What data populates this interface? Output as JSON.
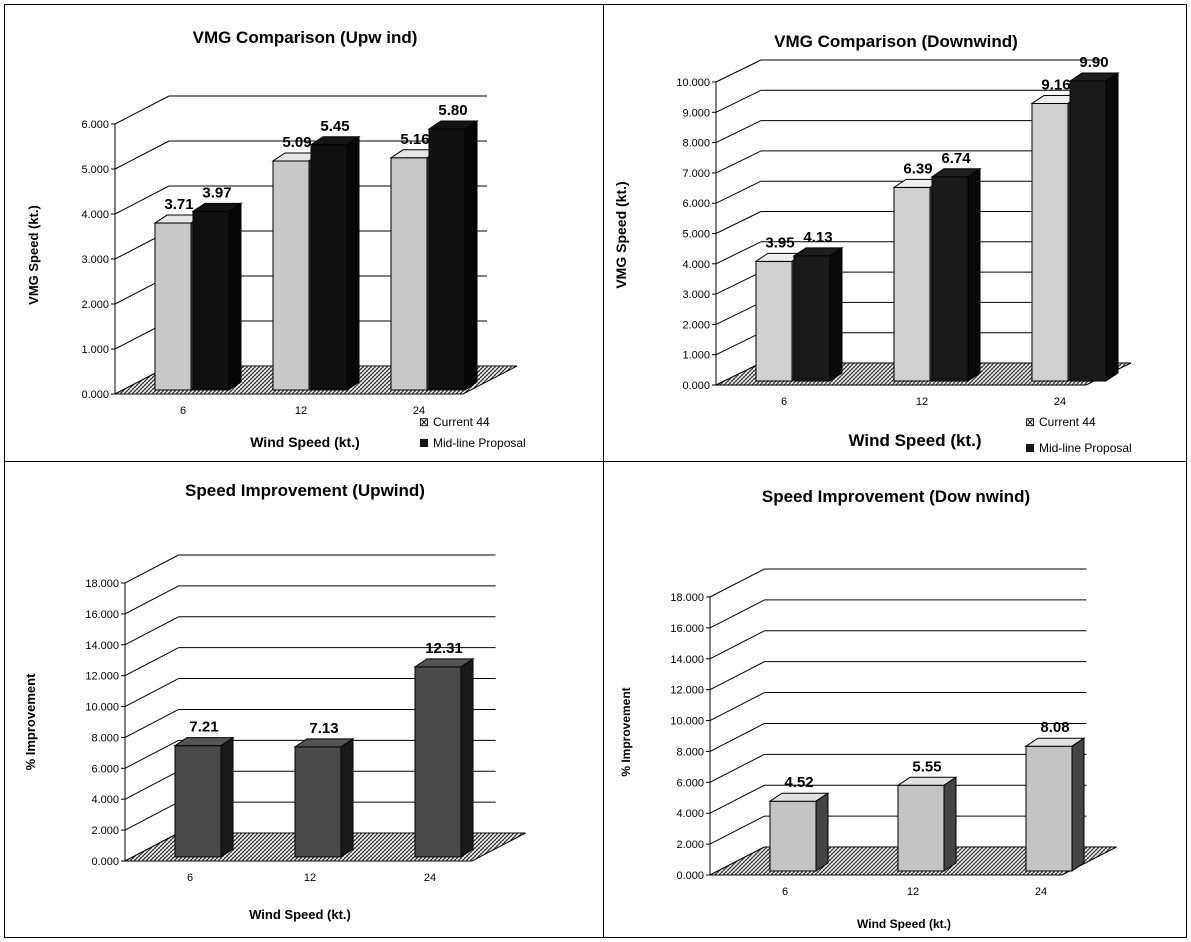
{
  "chart_data": [
    {
      "type": "bar",
      "title": "VMG Comparison (Upw ind)",
      "xlabel": "Wind Speed (kt.)",
      "ylabel": "VMG Speed (kt.)",
      "categories": [
        "6",
        "12",
        "24"
      ],
      "ylim": [
        0,
        6
      ],
      "yticks": [
        "0.000",
        "1.000",
        "2.000",
        "3.000",
        "4.000",
        "5.000",
        "6.000"
      ],
      "series": [
        {
          "name": "Current 44",
          "values": [
            3.71,
            5.09,
            5.16
          ],
          "labels": [
            "3.71",
            "5.09",
            "5.16"
          ],
          "color": "#c8c8c8"
        },
        {
          "name": "Mid-line Proposal",
          "values": [
            3.97,
            5.45,
            5.8
          ],
          "labels": [
            "3.97",
            "5.45",
            "5.80"
          ],
          "color": "#111111"
        }
      ],
      "legend": "bottom-right"
    },
    {
      "type": "bar",
      "title": "VMG Comparison (Downwind)",
      "xlabel": "Wind Speed (kt.)",
      "ylabel": "VMG Speed (kt.)",
      "categories": [
        "6",
        "12",
        "24"
      ],
      "ylim": [
        0,
        10
      ],
      "yticks": [
        "0.000",
        "1.000",
        "2.000",
        "3.000",
        "4.000",
        "5.000",
        "6.000",
        "7.000",
        "8.000",
        "9.000",
        "10.000"
      ],
      "series": [
        {
          "name": "Current 44",
          "values": [
            3.95,
            6.39,
            9.16
          ],
          "labels": [
            "3.95",
            "6.39",
            "9.16"
          ],
          "color": "#cfcfcf"
        },
        {
          "name": "Mid-line Proposal",
          "values": [
            4.13,
            6.74,
            9.9
          ],
          "labels": [
            "4.13",
            "6.74",
            "9.90"
          ],
          "color": "#1a1a1a"
        }
      ],
      "legend": "bottom-right"
    },
    {
      "type": "bar",
      "title": "Speed Improvement (Upwind)",
      "xlabel": "Wind Speed (kt.)",
      "ylabel": "% Improvement",
      "categories": [
        "6",
        "12",
        "24"
      ],
      "ylim": [
        0,
        18
      ],
      "yticks": [
        "0.000",
        "2.000",
        "4.000",
        "6.000",
        "8.000",
        "10.000",
        "12.000",
        "14.000",
        "16.000",
        "18.000"
      ],
      "series": [
        {
          "values": [
            7.21,
            7.13,
            12.31
          ],
          "labels": [
            "7.21",
            "7.13",
            "12.31"
          ],
          "color": "#4a4a4a"
        }
      ]
    },
    {
      "type": "bar",
      "title": "Speed Improvement (Dow nwind)",
      "xlabel": "Wind Speed (kt.)",
      "ylabel": "% Improvement",
      "categories": [
        "6",
        "12",
        "24"
      ],
      "ylim": [
        0,
        18
      ],
      "yticks": [
        "0.000",
        "2.000",
        "4.000",
        "6.000",
        "8.000",
        "10.000",
        "12.000",
        "14.000",
        "16.000",
        "18.000"
      ],
      "series": [
        {
          "values": [
            4.52,
            5.55,
            8.08
          ],
          "labels": [
            "4.52",
            "5.55",
            "8.08"
          ],
          "color": "#c4c4c4"
        }
      ]
    }
  ]
}
